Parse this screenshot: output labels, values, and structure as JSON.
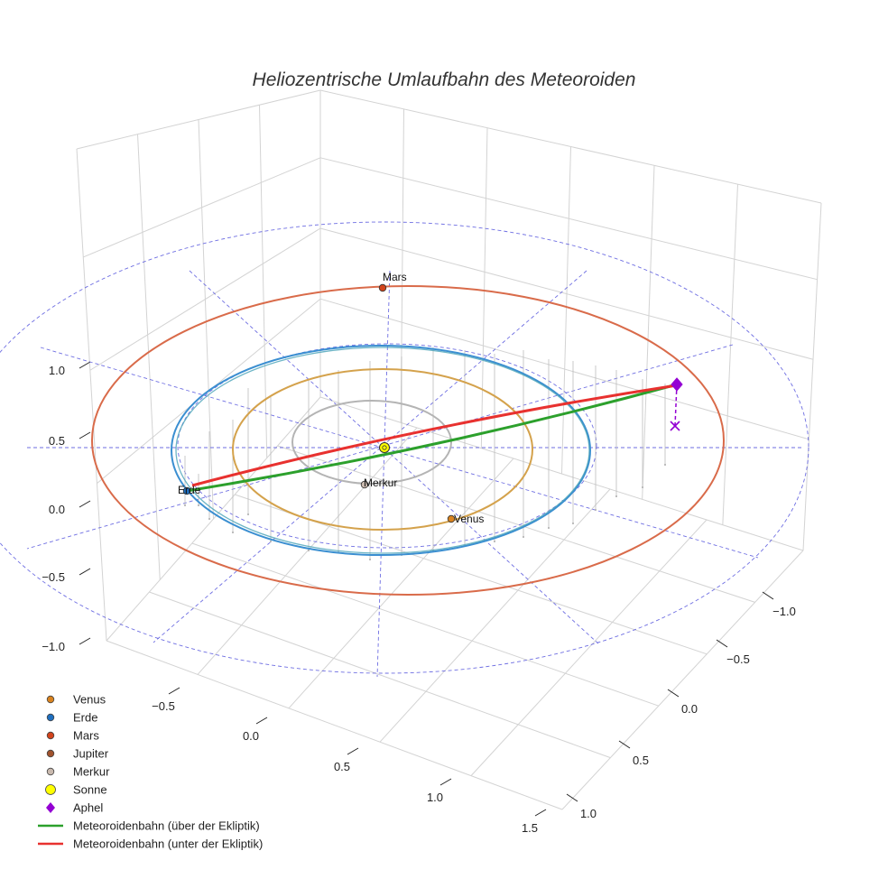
{
  "chart_data": {
    "type": "scatter3d",
    "title": "Heliozentrische Umlaufbahn des Meteoroiden",
    "axes": {
      "x_ticks": [
        "−0.5",
        "0.0",
        "0.5",
        "1.0",
        "1.5"
      ],
      "y_ticks": [
        "−1.0",
        "−0.5",
        "0.0",
        "0.5",
        "1.0"
      ],
      "z_ticks": [
        "−1.0",
        "−0.5",
        "0.0",
        "0.5",
        "1.0"
      ],
      "grid": true
    },
    "orbits": [
      {
        "name": "Merkur",
        "color": "#b4b4b4"
      },
      {
        "name": "Venus",
        "color": "#d4a24c"
      },
      {
        "name": "Erde",
        "color": "#3b8fd1"
      },
      {
        "name": "Mars",
        "color": "#d96b4a"
      }
    ],
    "point_labels": [
      "Mars",
      "Erde",
      "Merkur",
      "Venus"
    ],
    "legend": [
      {
        "label": "Venus",
        "marker": "circle",
        "color": "#d9831f"
      },
      {
        "label": "Erde",
        "marker": "circle",
        "color": "#1f6fbf"
      },
      {
        "label": "Mars",
        "marker": "circle",
        "color": "#d2441c"
      },
      {
        "label": "Jupiter",
        "marker": "circle",
        "color": "#a0522d"
      },
      {
        "label": "Merkur",
        "marker": "circle",
        "color": "#c9b9ae"
      },
      {
        "label": "Sonne",
        "marker": "circle",
        "color": "#ffff00"
      },
      {
        "label": "Aphel",
        "marker": "diamond",
        "color": "#9400d3"
      },
      {
        "label": "Meteoroidenbahn (über der Ekliptik)",
        "marker": "line",
        "color": "#2ca02c"
      },
      {
        "label": "Meteoroidenbahn (unter der Ekliptik)",
        "marker": "line",
        "color": "#e8312f"
      }
    ],
    "colors": {
      "meteoroid_above": "#2ca02c",
      "meteoroid_below": "#e8312f",
      "aphel": "#9400d3",
      "ecliptic_grid": "#5555dd",
      "sun": "#ffff00"
    }
  }
}
